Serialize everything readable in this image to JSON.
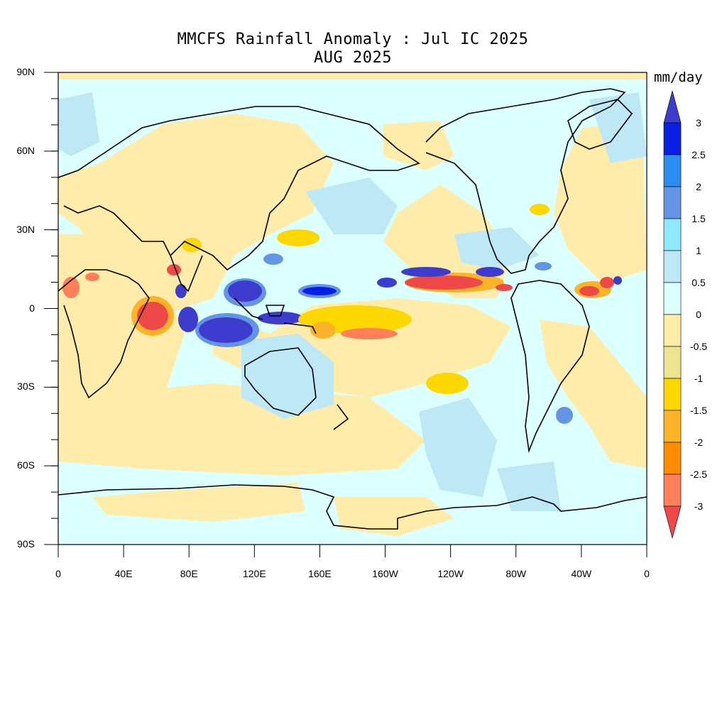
{
  "title": "MMCFS Rainfall Anomaly : Jul IC 2025",
  "subtitle": "AUG 2025",
  "units": "mm/day",
  "lat_labels": [
    "90N",
    "60N",
    "30N",
    "0",
    "30S",
    "60S",
    "90S"
  ],
  "lon_labels": [
    "0",
    "40E",
    "80E",
    "120E",
    "160E",
    "160W",
    "120W",
    "80W",
    "40W",
    "0"
  ],
  "colorbar": {
    "labels": [
      "3",
      "2.5",
      "2",
      "1.5",
      "1",
      "0.5",
      "0",
      "-0.5",
      "-1",
      "-1.5",
      "-2",
      "-2.5",
      "-3"
    ],
    "colors": [
      "#3e3bcf",
      "#0a1fe6",
      "#2d8cf0",
      "#6494e6",
      "#8fe8ff",
      "#bfe8f7",
      "#dcffff",
      "#ffecaa",
      "#ede390",
      "#fdd700",
      "#fbb42a",
      "#ff8c00",
      "#ff7f5a",
      "#f04848"
    ]
  },
  "chart_data": {
    "type": "contour_map",
    "title": "MMCFS Rainfall Anomaly : Jul IC 2025",
    "subtitle": "AUG 2025",
    "units": "mm/day",
    "lon_range": [
      0,
      360
    ],
    "lat_range": [
      -90,
      90
    ],
    "levels": [
      -3,
      -2.5,
      -2,
      -1.5,
      -1,
      -0.5,
      0,
      0.5,
      1,
      1.5,
      2,
      2.5,
      3
    ]
  }
}
